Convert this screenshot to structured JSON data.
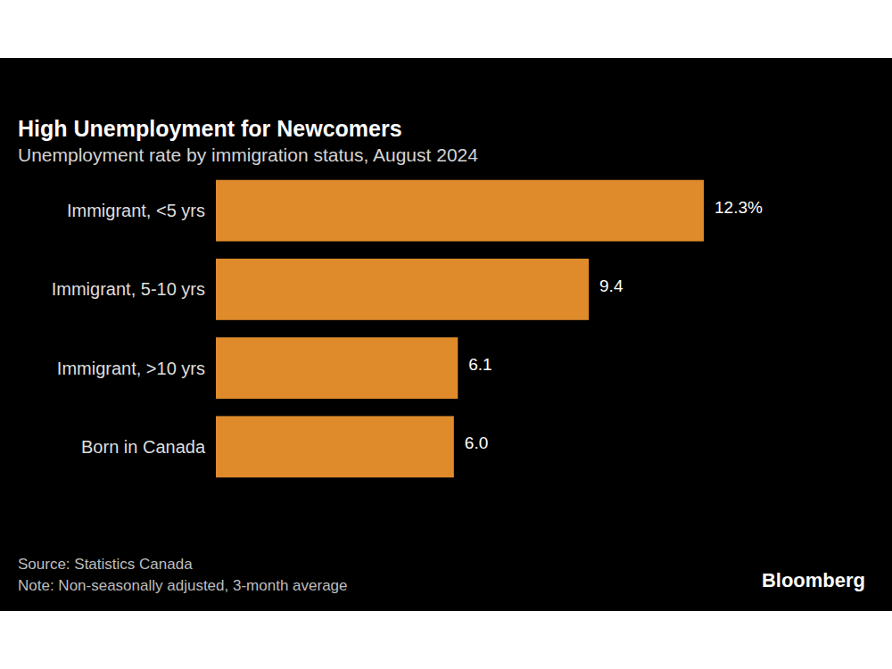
{
  "chart_data": {
    "type": "bar",
    "orientation": "horizontal",
    "title": "High Unemployment for Newcomers",
    "subtitle": "Unemployment rate by immigration status, August 2024",
    "categories": [
      "Immigrant, <5 yrs",
      "Immigrant, 5-10 yrs",
      "Immigrant, >10 yrs",
      "Born in Canada"
    ],
    "values": [
      12.3,
      9.4,
      6.1,
      6.0
    ],
    "value_labels": [
      "12.3%",
      "9.4",
      "6.1",
      "6.0"
    ],
    "data_labels": true,
    "color": "#df8b2b",
    "xlim": [
      0,
      12.3
    ],
    "tick_labels": false,
    "grid": false,
    "source": "Source: Statistics Canada",
    "note": "Note: Non-seasonally adjusted, 3-month average",
    "credit": "Bloomberg"
  }
}
